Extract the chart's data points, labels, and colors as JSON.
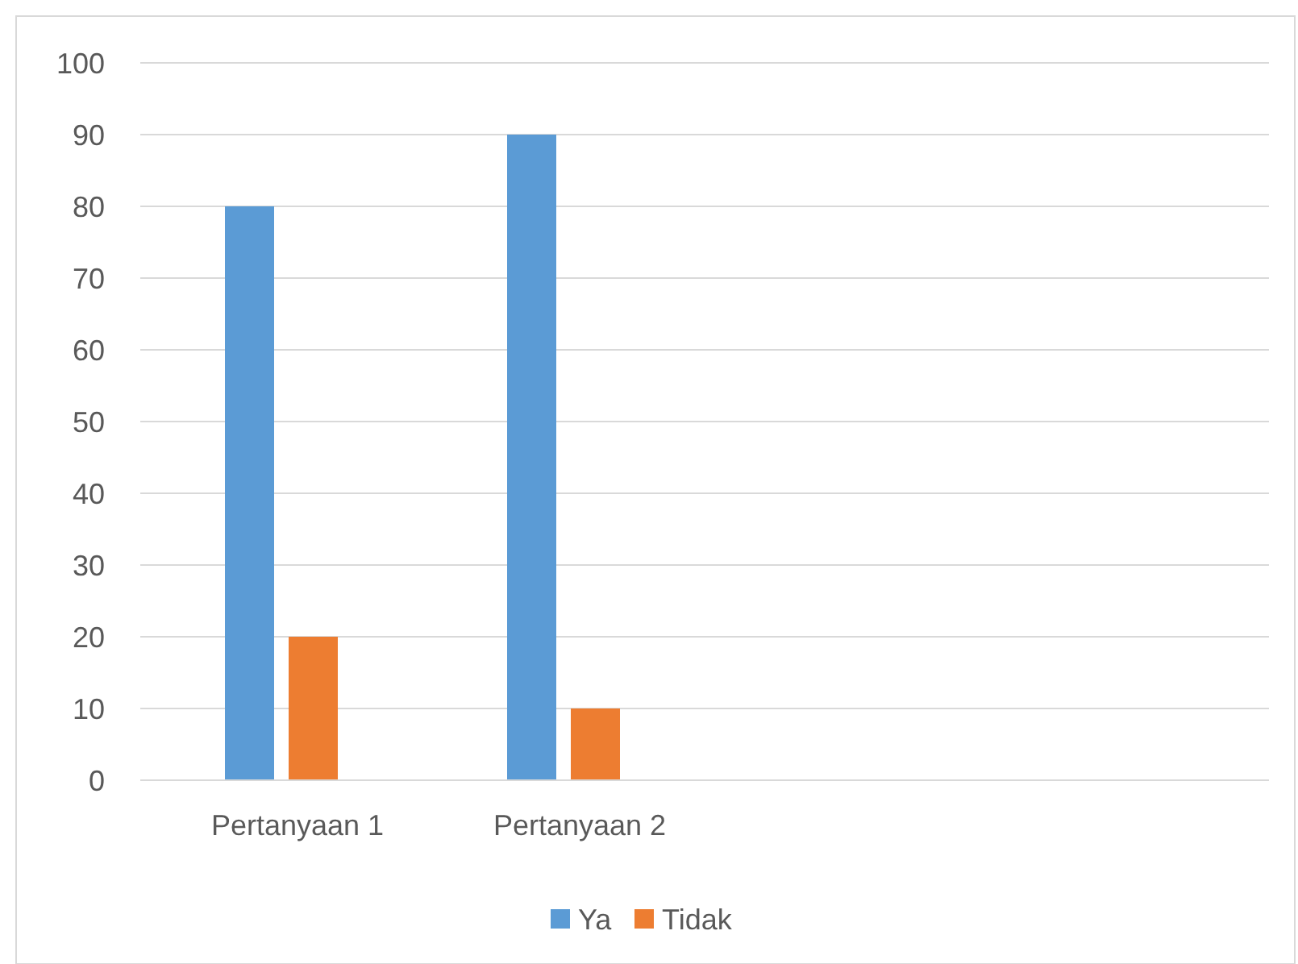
{
  "chart_data": {
    "type": "bar",
    "categories": [
      "Pertanyaan 1",
      "Pertanyaan 2",
      null,
      null
    ],
    "series": [
      {
        "name": "Ya",
        "color": "#5b9bd5",
        "values": [
          80,
          90,
          null,
          null
        ]
      },
      {
        "name": "Tidak",
        "color": "#ed7d31",
        "values": [
          20,
          10,
          null,
          null
        ]
      }
    ],
    "ylim": [
      0,
      100
    ],
    "yticks": [
      0,
      10,
      20,
      30,
      40,
      50,
      60,
      70,
      80,
      90,
      100
    ],
    "grid": "y",
    "legend": "bottom"
  }
}
